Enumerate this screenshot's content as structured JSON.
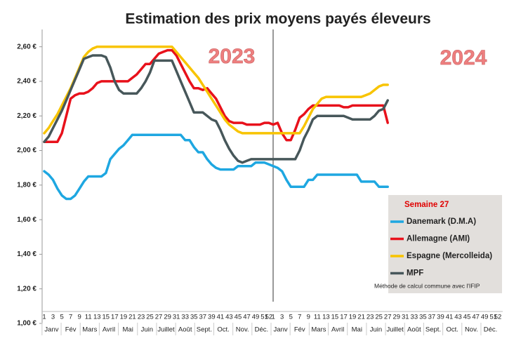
{
  "chart_data": {
    "type": "line",
    "title": "Estimation des prix moyens payés éleveurs",
    "annotations": [
      "2023",
      "2024"
    ],
    "legend_title": "Semaine 27",
    "note": "Méthode de calcul commune avec l'IFIP",
    "month_labels": [
      "Janv",
      "Fév",
      "Mars",
      "Avril",
      "Mai",
      "Juin",
      "Juillet",
      "Août",
      "Sept.",
      "Oct.",
      "Nov.",
      "Déc."
    ],
    "categories": [
      "1",
      null,
      "3",
      null,
      "5",
      null,
      "7",
      null,
      "9",
      null,
      "11",
      null,
      "13",
      null,
      "15",
      null,
      "17",
      null,
      "19",
      null,
      "21",
      null,
      "23",
      null,
      "25",
      null,
      "27",
      null,
      "29",
      null,
      "31",
      null,
      "33",
      null,
      "35",
      null,
      "37",
      null,
      "39",
      null,
      "41",
      null,
      "43",
      null,
      "45",
      null,
      "47",
      null,
      "49",
      null,
      "51",
      "52",
      "1",
      null,
      "3",
      null,
      "5",
      null,
      "7",
      null,
      "9",
      null,
      "11",
      null,
      "13",
      null,
      "15",
      null,
      "17",
      null,
      "19",
      null,
      "21",
      null,
      "23",
      null,
      "25",
      null,
      "27",
      null,
      "29",
      null,
      "31",
      null,
      "33",
      null,
      "35",
      null,
      "37",
      null,
      "39",
      null,
      "41",
      null,
      "43",
      null,
      "45",
      null,
      "47",
      null,
      "49",
      null,
      "51",
      "52"
    ],
    "ylim": [
      1.0,
      2.7
    ],
    "yticks": [
      {
        "value": 1.0,
        "label": "1,00 €"
      },
      {
        "value": 1.2,
        "label": "1,20 €"
      },
      {
        "value": 1.4,
        "label": "1,40 €"
      },
      {
        "value": 1.6,
        "label": "1,60 €"
      },
      {
        "value": 1.8,
        "label": "1,80 €"
      },
      {
        "value": 2.0,
        "label": "2,00 €"
      },
      {
        "value": 2.2,
        "label": "2,20 €"
      },
      {
        "value": 2.4,
        "label": "2,40 €"
      },
      {
        "value": 2.6,
        "label": "2,60 €"
      }
    ],
    "series": [
      {
        "name": "Danemark (D.M.A)",
        "color": "#1ea7e1",
        "values": [
          1.88,
          1.86,
          1.83,
          1.78,
          1.74,
          1.72,
          1.72,
          1.74,
          1.78,
          1.82,
          1.85,
          1.85,
          1.85,
          1.85,
          1.87,
          1.95,
          1.98,
          2.01,
          2.03,
          2.06,
          2.09,
          2.09,
          2.09,
          2.09,
          2.09,
          2.09,
          2.09,
          2.09,
          2.09,
          2.09,
          2.09,
          2.09,
          2.06,
          2.06,
          2.02,
          1.99,
          1.99,
          1.95,
          1.92,
          1.9,
          1.89,
          1.89,
          1.89,
          1.89,
          1.91,
          1.91,
          1.91,
          1.91,
          1.93,
          1.93,
          1.93,
          1.92,
          1.91,
          1.9,
          1.88,
          1.83,
          1.79,
          1.79,
          1.79,
          1.79,
          1.83,
          1.83,
          1.86,
          1.86,
          1.86,
          1.86,
          1.86,
          1.86,
          1.86,
          1.86,
          1.86,
          1.86,
          1.82,
          1.82,
          1.82,
          1.82,
          1.79,
          1.79,
          1.79,
          null,
          null,
          null,
          null,
          null,
          null,
          null,
          null,
          null,
          null,
          null,
          null,
          null,
          null,
          null,
          null,
          null,
          null,
          null,
          null,
          null,
          null,
          null,
          null,
          null
        ]
      },
      {
        "name": "Allemagne (AMI)",
        "color": "#e8111b",
        "values": [
          2.05,
          2.05,
          2.05,
          2.05,
          2.1,
          2.2,
          2.3,
          2.32,
          2.33,
          2.33,
          2.34,
          2.36,
          2.39,
          2.4,
          2.4,
          2.4,
          2.4,
          2.4,
          2.4,
          2.4,
          2.42,
          2.44,
          2.47,
          2.5,
          2.5,
          2.53,
          2.56,
          2.57,
          2.58,
          2.58,
          2.55,
          2.5,
          2.45,
          2.4,
          2.36,
          2.36,
          2.35,
          2.36,
          2.33,
          2.3,
          2.25,
          2.2,
          2.17,
          2.16,
          2.16,
          2.16,
          2.15,
          2.15,
          2.15,
          2.15,
          2.16,
          2.16,
          2.15,
          2.16,
          2.1,
          2.06,
          2.06,
          2.12,
          2.19,
          2.21,
          2.24,
          2.26,
          2.26,
          2.26,
          2.26,
          2.26,
          2.26,
          2.26,
          2.25,
          2.25,
          2.26,
          2.26,
          2.26,
          2.26,
          2.26,
          2.26,
          2.26,
          2.26,
          2.16,
          null,
          null,
          null,
          null,
          null,
          null,
          null,
          null,
          null,
          null,
          null,
          null,
          null,
          null,
          null,
          null,
          null,
          null,
          null,
          null,
          null,
          null,
          null,
          null,
          null
        ]
      },
      {
        "name": "Espagne (Mercolleida)",
        "color": "#f8c400",
        "values": [
          2.1,
          2.13,
          2.17,
          2.21,
          2.26,
          2.31,
          2.36,
          2.42,
          2.48,
          2.54,
          2.57,
          2.59,
          2.6,
          2.6,
          2.6,
          2.6,
          2.6,
          2.6,
          2.6,
          2.6,
          2.6,
          2.6,
          2.6,
          2.6,
          2.6,
          2.6,
          2.6,
          2.6,
          2.6,
          2.6,
          2.57,
          2.54,
          2.51,
          2.48,
          2.45,
          2.42,
          2.38,
          2.34,
          2.3,
          2.26,
          2.22,
          2.18,
          2.15,
          2.13,
          2.11,
          2.1,
          2.1,
          2.1,
          2.1,
          2.1,
          2.1,
          2.1,
          2.1,
          2.1,
          2.1,
          2.1,
          2.1,
          2.1,
          2.1,
          2.14,
          2.19,
          2.24,
          2.27,
          2.3,
          2.31,
          2.31,
          2.31,
          2.31,
          2.31,
          2.31,
          2.31,
          2.31,
          2.31,
          2.32,
          2.33,
          2.35,
          2.37,
          2.38,
          2.38,
          null,
          null,
          null,
          null,
          null,
          null,
          null,
          null,
          null,
          null,
          null,
          null,
          null,
          null,
          null,
          null,
          null,
          null,
          null,
          null,
          null,
          null,
          null,
          null,
          null
        ]
      },
      {
        "name": "MPF",
        "color": "#47575a",
        "values": [
          2.05,
          2.08,
          2.13,
          2.18,
          2.23,
          2.29,
          2.35,
          2.41,
          2.47,
          2.53,
          2.54,
          2.55,
          2.55,
          2.55,
          2.54,
          2.48,
          2.4,
          2.35,
          2.33,
          2.33,
          2.33,
          2.33,
          2.36,
          2.4,
          2.45,
          2.52,
          2.52,
          2.52,
          2.52,
          2.52,
          2.46,
          2.4,
          2.34,
          2.28,
          2.22,
          2.22,
          2.22,
          2.2,
          2.18,
          2.17,
          2.12,
          2.06,
          2.01,
          1.97,
          1.94,
          1.93,
          1.94,
          1.95,
          1.95,
          1.95,
          1.95,
          1.95,
          1.95,
          1.95,
          1.95,
          1.95,
          1.95,
          1.95,
          2.0,
          2.07,
          2.12,
          2.18,
          2.2,
          2.2,
          2.2,
          2.2,
          2.2,
          2.2,
          2.2,
          2.19,
          2.18,
          2.18,
          2.18,
          2.18,
          2.18,
          2.2,
          2.23,
          2.24,
          2.29,
          null,
          null,
          null,
          null,
          null,
          null,
          null,
          null,
          null,
          null,
          null,
          null,
          null,
          null,
          null,
          null,
          null,
          null,
          null,
          null,
          null,
          null,
          null,
          null,
          null
        ]
      }
    ]
  }
}
